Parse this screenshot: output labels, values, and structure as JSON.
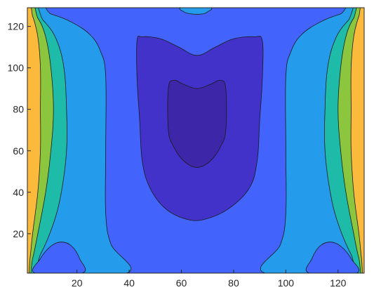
{
  "chart_data": {
    "type": "contour",
    "title": "",
    "xlabel": "",
    "ylabel": "",
    "xlim": [
      1,
      130
    ],
    "ylim": [
      1,
      129
    ],
    "grid": false,
    "legend": "none",
    "x_ticks": [
      {
        "value": 20,
        "label": "20"
      },
      {
        "value": 40,
        "label": "40"
      },
      {
        "value": 60,
        "label": "60"
      },
      {
        "value": 80,
        "label": "80"
      },
      {
        "value": 100,
        "label": "100"
      },
      {
        "value": 120,
        "label": "120"
      }
    ],
    "y_ticks": [
      {
        "value": 20,
        "label": "20"
      },
      {
        "value": 40,
        "label": "40"
      },
      {
        "value": 60,
        "label": "60"
      },
      {
        "value": 80,
        "label": "80"
      },
      {
        "value": 100,
        "label": "100"
      },
      {
        "value": 120,
        "label": "120"
      }
    ],
    "level_colors": [
      "#3e26a8",
      "#4232c9",
      "#4364fc",
      "#259ceb",
      "#1ebba9",
      "#8cc63f",
      "#fcba3d"
    ],
    "contour_line_color": "#1a1a1a",
    "regions": [
      {
        "name": "level-2-base",
        "level": 2,
        "points": [
          [
            1,
            1
          ],
          [
            130,
            1
          ],
          [
            130,
            129
          ],
          [
            1,
            129
          ]
        ]
      },
      {
        "name": "level-3-left",
        "level": 3,
        "points": [
          [
            1,
            1
          ],
          [
            1,
            129
          ],
          [
            10,
            126
          ],
          [
            18,
            122
          ],
          [
            25,
            116
          ],
          [
            29,
            108
          ],
          [
            31,
            96
          ],
          [
            31,
            60
          ],
          [
            31,
            30
          ],
          [
            33,
            15
          ],
          [
            39,
            1
          ]
        ]
      },
      {
        "name": "level-3-right",
        "level": 3,
        "points": [
          [
            130,
            1
          ],
          [
            130,
            129
          ],
          [
            121,
            126
          ],
          [
            113,
            122
          ],
          [
            106,
            116
          ],
          [
            102,
            108
          ],
          [
            100,
            96
          ],
          [
            100,
            60
          ],
          [
            100,
            30
          ],
          [
            98,
            15
          ],
          [
            92,
            1
          ]
        ]
      },
      {
        "name": "level-3-top",
        "level": 3,
        "points": [
          [
            60,
            129
          ],
          [
            61,
            127
          ],
          [
            64,
            126
          ],
          [
            68,
            126
          ],
          [
            70,
            127
          ],
          [
            71,
            129
          ]
        ]
      },
      {
        "name": "level-4-left",
        "level": 4,
        "points": [
          [
            1,
            1
          ],
          [
            1,
            129
          ],
          [
            7,
            123
          ],
          [
            12,
            114
          ],
          [
            15,
            100
          ],
          [
            16,
            80
          ],
          [
            16,
            60
          ],
          [
            14,
            40
          ],
          [
            11,
            25
          ],
          [
            6,
            10
          ]
        ]
      },
      {
        "name": "level-4-right",
        "level": 4,
        "points": [
          [
            130,
            1
          ],
          [
            130,
            129
          ],
          [
            124,
            123
          ],
          [
            119,
            114
          ],
          [
            116,
            100
          ],
          [
            115,
            80
          ],
          [
            115,
            60
          ],
          [
            117,
            40
          ],
          [
            120,
            25
          ],
          [
            125,
            10
          ]
        ]
      },
      {
        "name": "level-5-left",
        "level": 5,
        "points": [
          [
            1,
            1
          ],
          [
            1,
            129
          ],
          [
            5,
            124
          ],
          [
            8,
            115
          ],
          [
            10,
            100
          ],
          [
            11,
            80
          ],
          [
            10,
            60
          ],
          [
            8,
            40
          ],
          [
            5,
            20
          ],
          [
            3,
            8
          ]
        ]
      },
      {
        "name": "level-5-right",
        "level": 5,
        "points": [
          [
            130,
            1
          ],
          [
            130,
            129
          ],
          [
            126,
            124
          ],
          [
            123,
            115
          ],
          [
            121,
            100
          ],
          [
            120,
            80
          ],
          [
            121,
            60
          ],
          [
            123,
            40
          ],
          [
            126,
            20
          ],
          [
            128,
            8
          ]
        ]
      },
      {
        "name": "level-6-left",
        "level": 6,
        "points": [
          [
            1,
            1
          ],
          [
            1,
            129
          ],
          [
            3,
            125
          ],
          [
            5,
            115
          ],
          [
            6,
            100
          ],
          [
            6,
            80
          ],
          [
            6,
            60
          ],
          [
            5,
            40
          ],
          [
            3,
            20
          ],
          [
            2,
            8
          ]
        ]
      },
      {
        "name": "level-6-right",
        "level": 6,
        "points": [
          [
            130,
            1
          ],
          [
            130,
            129
          ],
          [
            128,
            125
          ],
          [
            126,
            115
          ],
          [
            125,
            100
          ],
          [
            125,
            80
          ],
          [
            125,
            60
          ],
          [
            126,
            40
          ],
          [
            128,
            20
          ],
          [
            129,
            8
          ]
        ]
      },
      {
        "name": "level-2-bottom-left",
        "level": 2,
        "points": [
          [
            4,
            1
          ],
          [
            6,
            8
          ],
          [
            10,
            14
          ],
          [
            14,
            16
          ],
          [
            18,
            14
          ],
          [
            21,
            8
          ],
          [
            22,
            1
          ]
        ]
      },
      {
        "name": "level-2-bottom-right",
        "level": 2,
        "points": [
          [
            109,
            1
          ],
          [
            110,
            8
          ],
          [
            113,
            14
          ],
          [
            117,
            16
          ],
          [
            121,
            14
          ],
          [
            125,
            8
          ],
          [
            127,
            1
          ]
        ]
      },
      {
        "name": "level-1-center",
        "level": 1,
        "points": [
          [
            43,
            113
          ],
          [
            43,
            95
          ],
          [
            44,
            75
          ],
          [
            45,
            55
          ],
          [
            48,
            42
          ],
          [
            54,
            32
          ],
          [
            62,
            27
          ],
          [
            69,
            27
          ],
          [
            78,
            32
          ],
          [
            86,
            42
          ],
          [
            89,
            55
          ],
          [
            90,
            75
          ],
          [
            91,
            95
          ],
          [
            91,
            113
          ],
          [
            88,
            115
          ],
          [
            80,
            114
          ],
          [
            73,
            110
          ],
          [
            66,
            106
          ],
          [
            59,
            110
          ],
          [
            52,
            114
          ],
          [
            45,
            115
          ]
        ]
      },
      {
        "name": "level-0-center",
        "level": 0,
        "points": [
          [
            55,
            90
          ],
          [
            55,
            70
          ],
          [
            57,
            62
          ],
          [
            61,
            55
          ],
          [
            66,
            52
          ],
          [
            71,
            55
          ],
          [
            75,
            62
          ],
          [
            77,
            70
          ],
          [
            77,
            90
          ],
          [
            75,
            94
          ],
          [
            71,
            92
          ],
          [
            66,
            90
          ],
          [
            61,
            92
          ],
          [
            57,
            94
          ]
        ]
      }
    ]
  }
}
